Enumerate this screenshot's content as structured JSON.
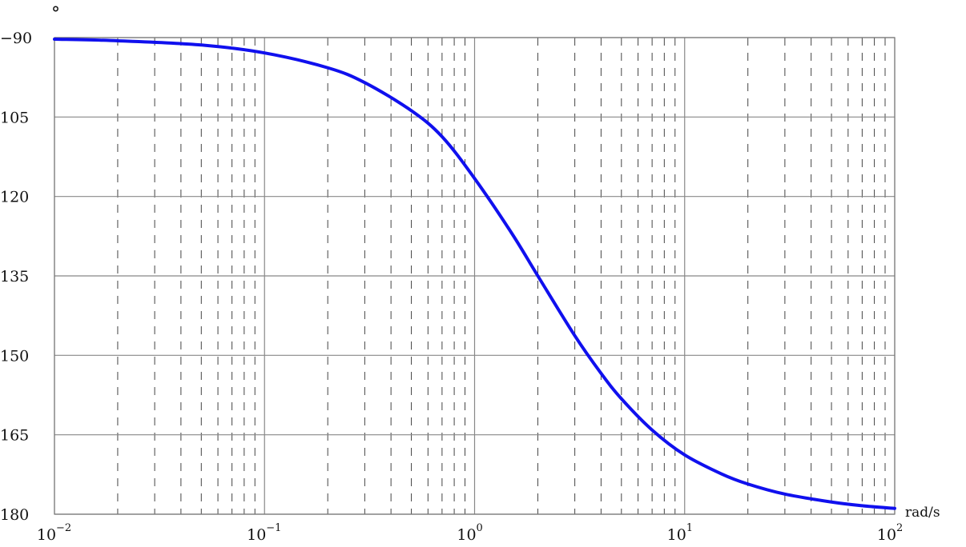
{
  "chart_data": {
    "type": "line",
    "title": "",
    "xlabel": "rad/s",
    "ylabel": "°",
    "xscale": "log",
    "xlim": [
      0.01,
      100
    ],
    "ylim": [
      -180,
      -90
    ],
    "grid": "major solid, minor dashed (x)",
    "x_ticks": [
      {
        "value": 0.01,
        "base": "10",
        "exp": "−2"
      },
      {
        "value": 0.1,
        "base": "10",
        "exp": "−1"
      },
      {
        "value": 1,
        "base": "10",
        "exp": "0"
      },
      {
        "value": 10,
        "base": "10",
        "exp": "1"
      },
      {
        "value": 100,
        "base": "10",
        "exp": "2"
      }
    ],
    "y_ticks": [
      {
        "value": -90,
        "label": "−90"
      },
      {
        "value": -105,
        "label": "105"
      },
      {
        "value": -120,
        "label": "120"
      },
      {
        "value": -135,
        "label": "135"
      },
      {
        "value": -150,
        "label": "150"
      },
      {
        "value": -165,
        "label": "165"
      },
      {
        "value": -180,
        "label": "180"
      }
    ],
    "series": [
      {
        "color": "#1010ee",
        "x": [
          0.01,
          0.02,
          0.05,
          0.1,
          0.2,
          0.3,
          0.5,
          0.7,
          1,
          1.5,
          2,
          3,
          4,
          5,
          7,
          10,
          15,
          20,
          30,
          50,
          70,
          100
        ],
        "y": [
          -90.3,
          -90.6,
          -91.4,
          -92.9,
          -95.7,
          -98.5,
          -103.8,
          -108.7,
          -116.6,
          -126.9,
          -135,
          -146.3,
          -153.4,
          -158.2,
          -164.1,
          -168.8,
          -172.4,
          -174.3,
          -176.2,
          -177.7,
          -178.4,
          -178.9
        ]
      }
    ]
  }
}
